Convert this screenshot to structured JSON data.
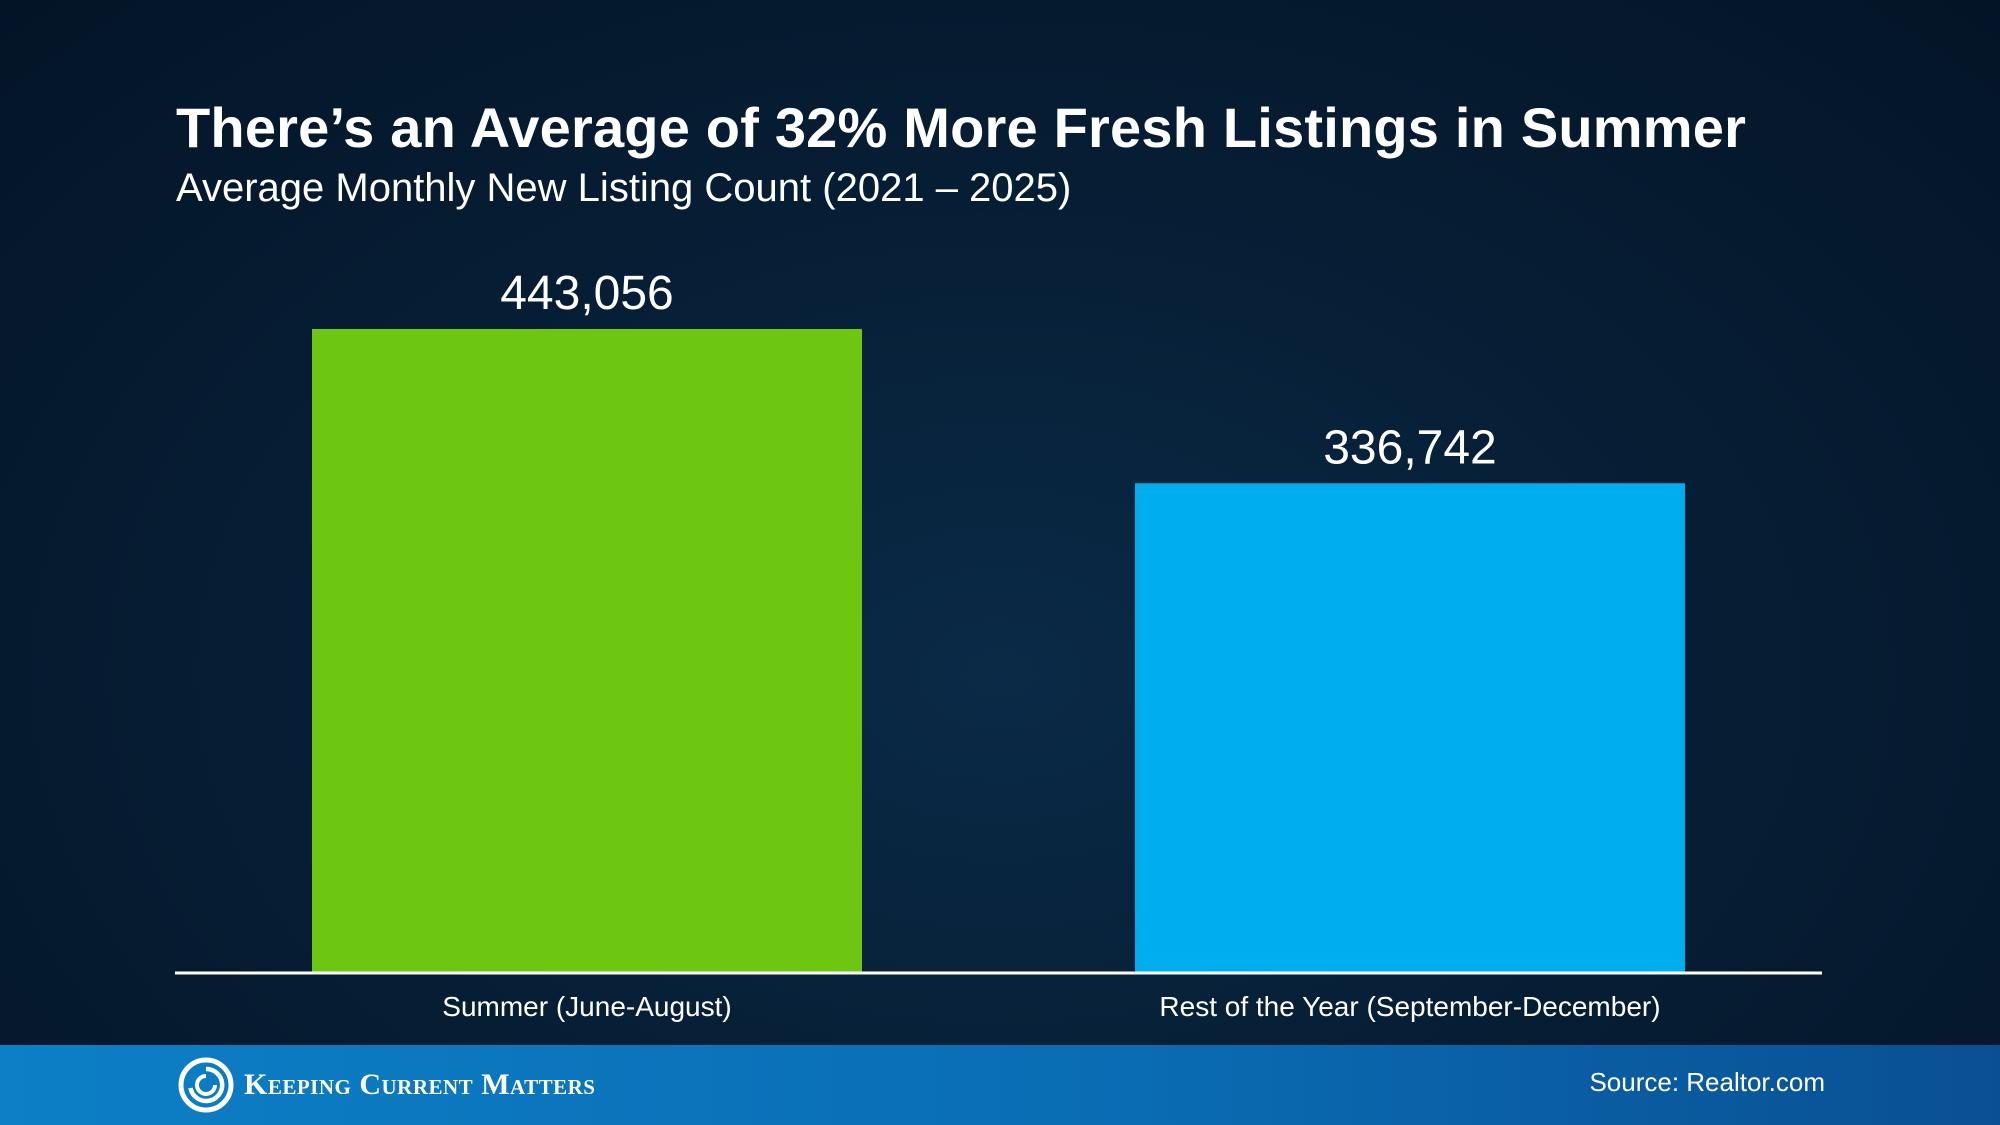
{
  "header": {
    "title": "There’s an Average of 32% More Fresh Listings in Summer",
    "subtitle": "Average Monthly New Listing Count (2021 – 2025)"
  },
  "chart_data": {
    "type": "bar",
    "title": "There’s an Average of 32% More Fresh Listings in Summer",
    "subtitle": "Average Monthly New Listing Count (2021 – 2025)",
    "categories": [
      "Summer (June-August)",
      "Rest of the Year (September-December)"
    ],
    "values": [
      443056,
      336742
    ],
    "value_labels": [
      "443,056",
      "336,742"
    ],
    "colors": [
      "#6cc612",
      "#00aeef"
    ],
    "xlabel": "",
    "ylabel": "",
    "ylim": [
      0,
      480000
    ],
    "grid": false,
    "legend": "none"
  },
  "footer": {
    "brand": "Keeping Current Matters",
    "brand_icon": "swirl-logo-icon",
    "source": "Source: Realtor.com"
  }
}
